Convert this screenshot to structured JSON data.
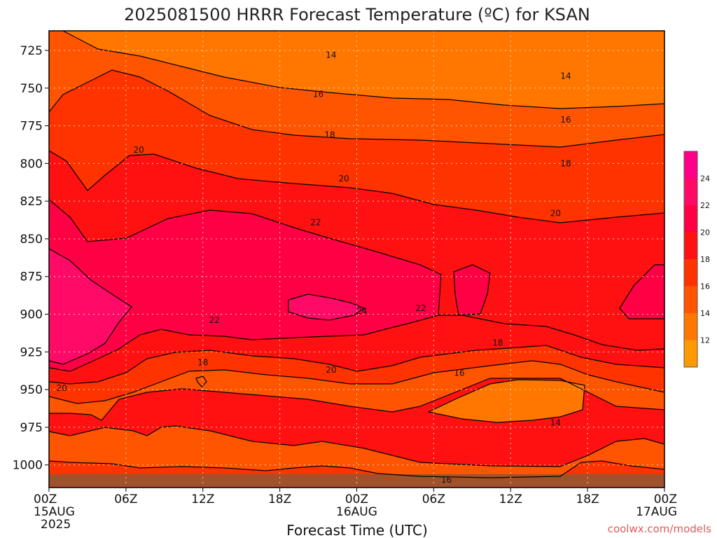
{
  "chart_data": {
    "type": "heatmap",
    "subtype": "filled-contour time-height section",
    "title": "2025081500 HRRR Forecast Temperature (ºC) for KSAN",
    "xlabel": "Forecast Time (UTC)",
    "ylabel": "",
    "y_axis": {
      "scale": "pressure (inverted)",
      "ticks": [
        725,
        750,
        775,
        800,
        825,
        850,
        875,
        900,
        925,
        950,
        975,
        1000
      ],
      "range": [
        1015,
        712
      ]
    },
    "x_axis": {
      "range_hours": [
        0,
        48
      ],
      "ticks": [
        {
          "label": "00Z",
          "sub": "15AUG",
          "sub2": "2025",
          "hour": 0
        },
        {
          "label": "06Z",
          "sub": "",
          "sub2": "",
          "hour": 6
        },
        {
          "label": "12Z",
          "sub": "",
          "sub2": "",
          "hour": 12
        },
        {
          "label": "18Z",
          "sub": "",
          "sub2": "",
          "hour": 18
        },
        {
          "label": "00Z",
          "sub": "16AUG",
          "sub2": "",
          "hour": 24
        },
        {
          "label": "06Z",
          "sub": "",
          "sub2": "",
          "hour": 30
        },
        {
          "label": "12Z",
          "sub": "",
          "sub2": "",
          "hour": 36
        },
        {
          "label": "18Z",
          "sub": "",
          "sub2": "",
          "hour": 42
        },
        {
          "label": "00Z",
          "sub": "17AUG",
          "sub2": "",
          "hour": 48
        }
      ]
    },
    "grid": true,
    "colorbar": {
      "placement": "right",
      "levels": [
        12,
        14,
        16,
        18,
        20,
        22,
        24
      ],
      "labels": [
        "12",
        "14",
        "16",
        "18",
        "20",
        "22",
        "24"
      ],
      "colors": [
        "#ff9900",
        "#ff7700",
        "#ff5500",
        "#ff3300",
        "#ff1111",
        "#ff0044",
        "#ff0a66",
        "#ff0088"
      ]
    },
    "contour_labels": [
      {
        "text": "14",
        "hour": 22.0,
        "p": 728
      },
      {
        "text": "14",
        "hour": 40.3,
        "p": 742
      },
      {
        "text": "16",
        "hour": 21.0,
        "p": 754
      },
      {
        "text": "16",
        "hour": 40.3,
        "p": 771
      },
      {
        "text": "18",
        "hour": 21.9,
        "p": 781
      },
      {
        "text": "18",
        "hour": 40.3,
        "p": 800
      },
      {
        "text": "20",
        "hour": 7.0,
        "p": 791
      },
      {
        "text": "20",
        "hour": 23.0,
        "p": 810
      },
      {
        "text": "20",
        "hour": 39.5,
        "p": 833
      },
      {
        "text": "22",
        "hour": 20.8,
        "p": 839
      },
      {
        "text": "22",
        "hour": 29.0,
        "p": 896
      },
      {
        "text": "22",
        "hour": 12.9,
        "p": 904
      },
      {
        "text": "24",
        "hour": 24.4,
        "p": 898
      },
      {
        "text": "18",
        "hour": 35.0,
        "p": 919
      },
      {
        "text": "18",
        "hour": 12.0,
        "p": 932
      },
      {
        "text": "20",
        "hour": 22.0,
        "p": 937
      },
      {
        "text": "16",
        "hour": 32.0,
        "p": 939
      },
      {
        "text": "20",
        "hour": 1.0,
        "p": 949
      },
      {
        "text": "14",
        "hour": 39.5,
        "p": 972
      },
      {
        "text": "16",
        "hour": 31.0,
        "p": 1010
      }
    ],
    "colors": {
      "c12": "#ff9900",
      "c14": "#ff7700",
      "c16": "#ff5500",
      "c18": "#ff3300",
      "c20": "#ff1111",
      "c22": "#ff0044",
      "c24": "#ff0a66",
      "c26": "#ff0088",
      "ground": "#a0522d"
    }
  },
  "credit": "coolwx.com/models"
}
